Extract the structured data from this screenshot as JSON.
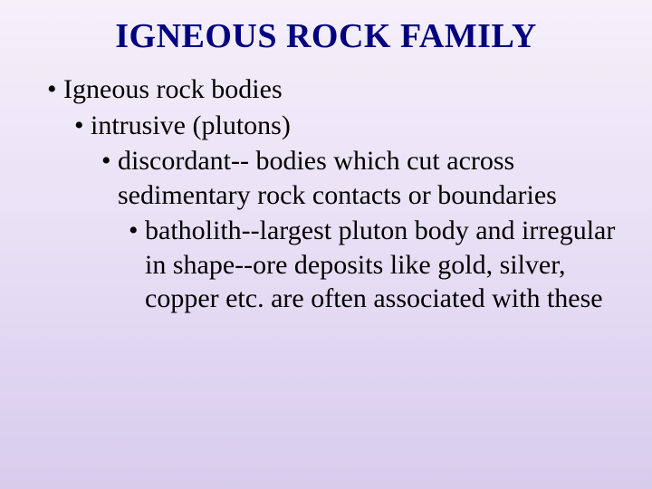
{
  "slide": {
    "title": "IGNEOUS ROCK FAMILY",
    "bullets": {
      "l1": "Igneous rock bodies",
      "l2": "intrusive (plutons)",
      "l3": "discordant-- bodies which cut across sedimentary rock contacts or boundaries",
      "l4": "batholith--largest pluton body and irregular in shape--ore deposits like gold, silver, copper etc. are often associated with these"
    }
  },
  "colors": {
    "title_color": "#000080",
    "text_color": "#000000",
    "background_top": "#f5f0fa",
    "background_mid": "#e8dff5",
    "background_bottom": "#d8cbed"
  },
  "typography": {
    "title_fontsize": 38,
    "body_fontsize": 30,
    "font_family": "Times New Roman",
    "title_weight": "bold"
  },
  "type": "slide"
}
